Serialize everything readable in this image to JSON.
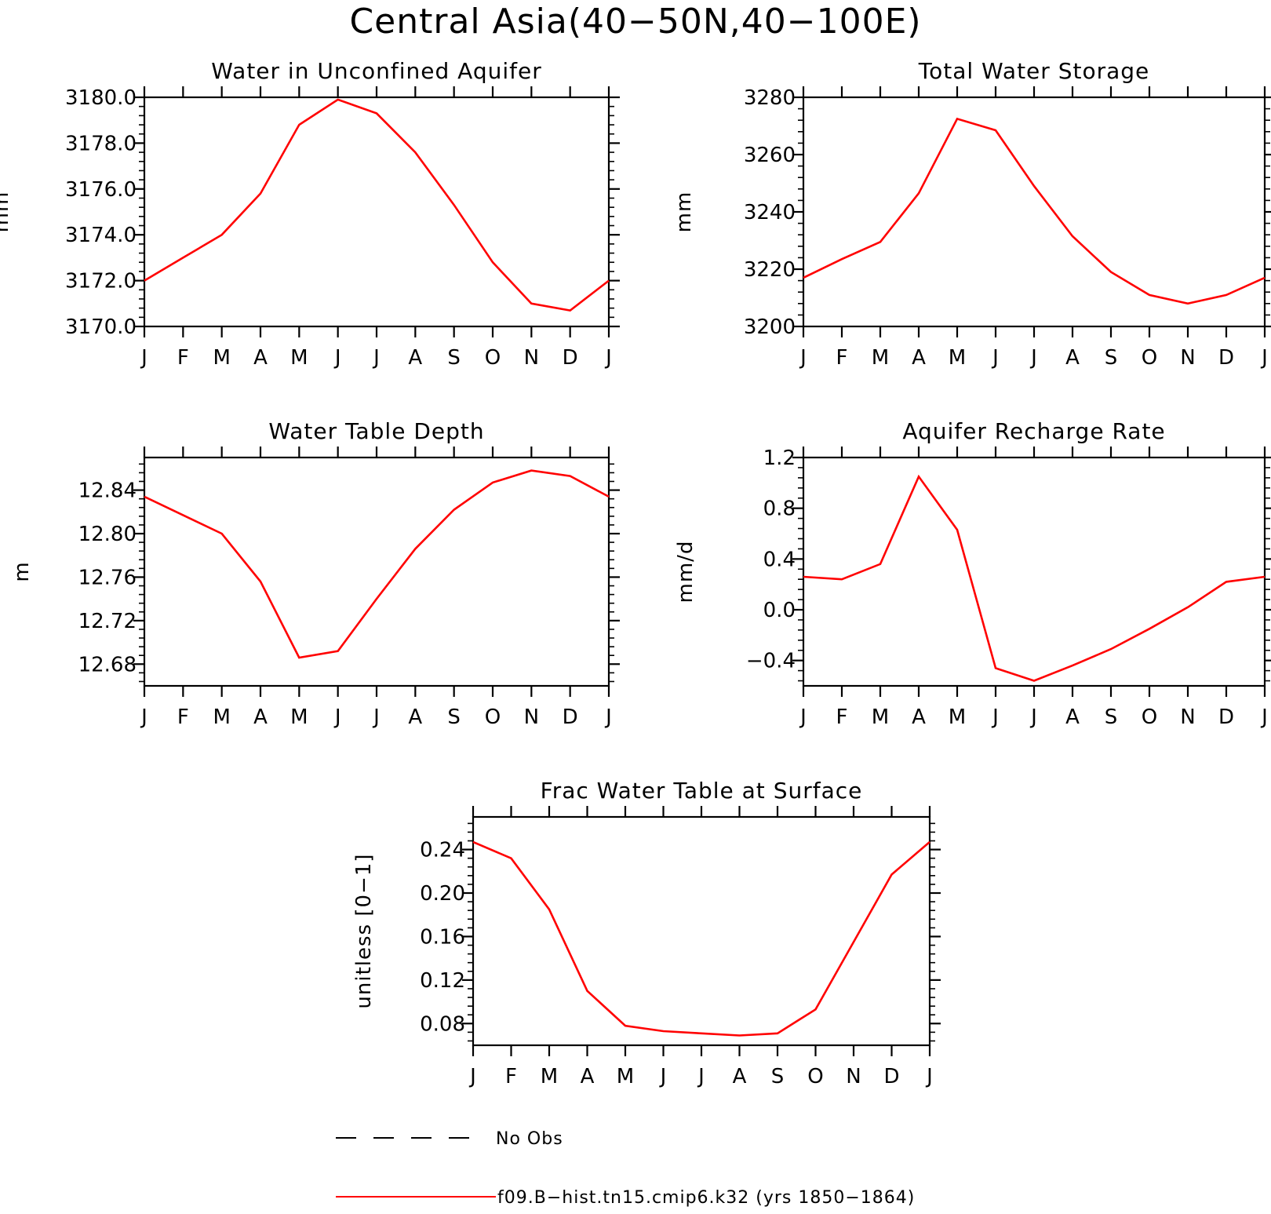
{
  "title": "Central Asia(40−50N,40−100E)",
  "colors": {
    "model": "#ff0000",
    "obs": "#000000"
  },
  "legend": {
    "obs_label": "No Obs",
    "model_label": "f09.B−hist.tn15.cmip6.k32 (yrs 1850−1864)"
  },
  "chart_data": [
    {
      "type": "line",
      "title": "Water in Unconfined Aquifer",
      "xlabel": "",
      "ylabel": "mm",
      "categories": [
        "J",
        "F",
        "M",
        "A",
        "M",
        "J",
        "J",
        "A",
        "S",
        "O",
        "N",
        "D",
        "J"
      ],
      "ylim": [
        3170.0,
        3180.0
      ],
      "yticks": [
        "3170.0",
        "3172.0",
        "3174.0",
        "3176.0",
        "3178.0",
        "3180.0"
      ],
      "series": [
        {
          "values": [
            3172.0,
            3173.0,
            3174.0,
            3175.8,
            3178.8,
            3179.9,
            3179.3,
            3177.6,
            3175.3,
            3172.8,
            3171.0,
            3170.7,
            3172.0
          ]
        }
      ]
    },
    {
      "type": "line",
      "title": "Total Water Storage",
      "xlabel": "",
      "ylabel": "mm",
      "categories": [
        "J",
        "F",
        "M",
        "A",
        "M",
        "J",
        "J",
        "A",
        "S",
        "O",
        "N",
        "D",
        "J"
      ],
      "ylim": [
        3200,
        3280
      ],
      "yticks": [
        "3200",
        "3220",
        "3240",
        "3260",
        "3280"
      ],
      "series": [
        {
          "values": [
            3217.0,
            3223.5,
            3229.5,
            3246.5,
            3272.5,
            3268.5,
            3249.0,
            3231.5,
            3219.0,
            3211.0,
            3208.0,
            3211.0,
            3217.0
          ]
        }
      ]
    },
    {
      "type": "line",
      "title": "Water Table Depth",
      "xlabel": "",
      "ylabel": "m",
      "categories": [
        "J",
        "F",
        "M",
        "A",
        "M",
        "J",
        "J",
        "A",
        "S",
        "O",
        "N",
        "D",
        "J"
      ],
      "ylim": [
        12.66,
        12.87
      ],
      "yticks": [
        "12.68",
        "12.72",
        "12.76",
        "12.80",
        "12.84"
      ],
      "series": [
        {
          "values": [
            12.834,
            12.817,
            12.8,
            12.756,
            12.686,
            12.692,
            12.74,
            12.786,
            12.822,
            12.847,
            12.858,
            12.853,
            12.834
          ]
        }
      ]
    },
    {
      "type": "line",
      "title": "Aquifer Recharge Rate",
      "xlabel": "",
      "ylabel": "mm/d",
      "categories": [
        "J",
        "F",
        "M",
        "A",
        "M",
        "J",
        "J",
        "A",
        "S",
        "O",
        "N",
        "D",
        "J"
      ],
      "ylim": [
        -0.6,
        1.2
      ],
      "yticks": [
        "−0.4",
        "0.0",
        "0.4",
        "0.8",
        "1.2"
      ],
      "series": [
        {
          "values": [
            0.26,
            0.24,
            0.36,
            1.05,
            0.63,
            -0.46,
            -0.56,
            -0.44,
            -0.31,
            -0.15,
            0.02,
            0.22,
            0.26
          ]
        }
      ]
    },
    {
      "type": "line",
      "title": "Frac Water Table at Surface",
      "xlabel": "",
      "ylabel": "unitless [0−1]",
      "categories": [
        "J",
        "F",
        "M",
        "A",
        "M",
        "J",
        "J",
        "A",
        "S",
        "O",
        "N",
        "D",
        "J"
      ],
      "ylim": [
        0.06,
        0.27
      ],
      "yticks": [
        "0.08",
        "0.12",
        "0.16",
        "0.20",
        "0.24"
      ],
      "series": [
        {
          "values": [
            0.247,
            0.232,
            0.185,
            0.11,
            0.078,
            0.073,
            0.071,
            0.069,
            0.071,
            0.093,
            0.155,
            0.217,
            0.247
          ]
        }
      ]
    }
  ]
}
